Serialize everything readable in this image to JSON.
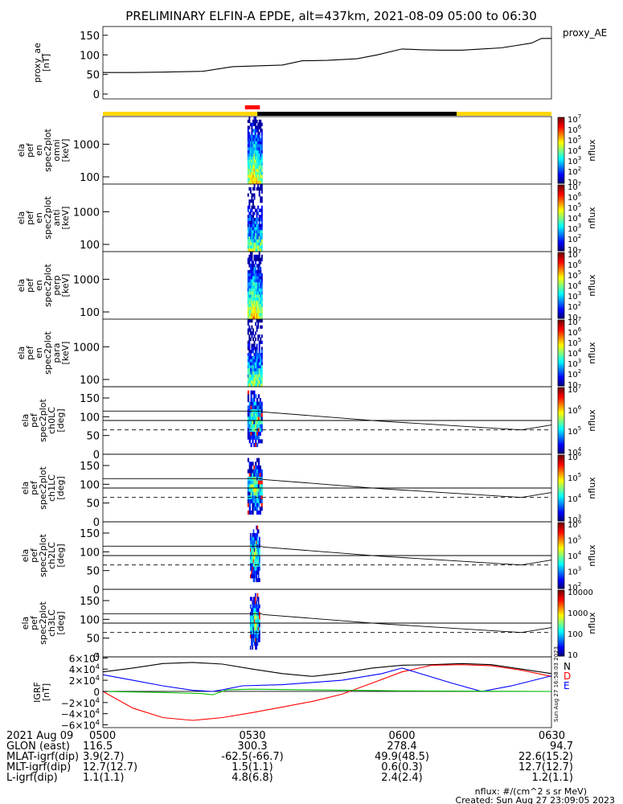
{
  "title": "PRELIMINARY ELFIN-A EPDE, alt=437km, 2021-08-09 05:00 to 06:30",
  "time_ticks": [
    "0500",
    "0530",
    "0600",
    "0630"
  ],
  "chart_data": [
    {
      "type": "line",
      "panel": "proxy_ae",
      "ylabel": [
        "proxy_ae",
        "[nT]"
      ],
      "legend": "proxy_AE",
      "ylim": [
        0,
        160
      ],
      "yticks": [
        0,
        50,
        100,
        150
      ],
      "x_minutes": [
        0,
        6,
        12,
        20,
        26,
        31,
        36,
        40,
        45,
        51,
        55,
        60,
        64,
        68,
        72,
        76,
        80,
        86,
        88,
        90
      ],
      "values": [
        55,
        55,
        56,
        58,
        70,
        72,
        74,
        85,
        86,
        90,
        100,
        115,
        113,
        112,
        112,
        115,
        118,
        130,
        142,
        142
      ],
      "line_color": "#000000"
    },
    {
      "type": "bar",
      "panel": "status_bar",
      "segments": [
        {
          "from": 0,
          "to": 31,
          "color": "#ffd700"
        },
        {
          "from": 31,
          "to": 71,
          "color": "#000000"
        },
        {
          "from": 71,
          "to": 90,
          "color": "#ffd700"
        }
      ],
      "marker": {
        "from": 28.5,
        "to": 31.5,
        "color": "#ff0000"
      }
    },
    {
      "type": "heatmap",
      "panel": "spec_omni",
      "ylabel": [
        "ela",
        "pef",
        "en",
        "spec2plot",
        "omni",
        "[keV]"
      ],
      "yscale": "log",
      "ylim": [
        60,
        7000
      ],
      "yticks": [
        100,
        1000
      ],
      "colorbar": {
        "label": "nflux",
        "ticks": [
          "10",
          "10^2",
          "10^3",
          "10^4",
          "10^5",
          "10^6",
          "10^7"
        ],
        "range": [
          1,
          7
        ]
      },
      "activity_minutes": [
        29,
        32
      ]
    },
    {
      "type": "heatmap",
      "panel": "spec_anti",
      "ylabel": [
        "ela",
        "pef",
        "en",
        "spec2plot",
        "anti",
        "[keV]"
      ],
      "yscale": "log",
      "ylim": [
        60,
        7000
      ],
      "yticks": [
        100,
        1000
      ],
      "colorbar": {
        "label": "nflux",
        "ticks": [
          "10",
          "10^2",
          "10^3",
          "10^4",
          "10^5",
          "10^6",
          "10^7"
        ],
        "range": [
          1,
          7
        ]
      },
      "activity_minutes": [
        29,
        32
      ]
    },
    {
      "type": "heatmap",
      "panel": "spec_perp",
      "ylabel": [
        "ela",
        "pef",
        "en",
        "spec2plot",
        "perp",
        "[keV]"
      ],
      "yscale": "log",
      "ylim": [
        60,
        7000
      ],
      "yticks": [
        100,
        1000
      ],
      "colorbar": {
        "label": "nflux",
        "ticks": [
          "10",
          "10^2",
          "10^3",
          "10^4",
          "10^5",
          "10^6",
          "10^7"
        ],
        "range": [
          1,
          7
        ]
      },
      "activity_minutes": [
        29,
        32
      ]
    },
    {
      "type": "heatmap",
      "panel": "spec_para",
      "ylabel": [
        "ela",
        "pef",
        "en",
        "spec2plot",
        "para",
        "[keV]"
      ],
      "yscale": "log",
      "ylim": [
        60,
        7000
      ],
      "yticks": [
        100,
        1000
      ],
      "colorbar": {
        "label": "nflux",
        "ticks": [
          "10",
          "10^2",
          "10^3",
          "10^4",
          "10^5",
          "10^6",
          "10^7"
        ],
        "range": [
          1,
          7
        ]
      },
      "activity_minutes": [
        29,
        32
      ]
    },
    {
      "type": "heatmap",
      "panel": "pa_ch0",
      "ylabel": [
        "ela",
        "pef",
        "spec2plot",
        "ch0LC",
        "[deg]"
      ],
      "ylim": [
        0,
        180
      ],
      "yticks": [
        0,
        50,
        100,
        150
      ],
      "colorbar": {
        "label": "nflux",
        "ticks": [
          "10^4",
          "10^5",
          "10^6",
          "10^7"
        ],
        "range": [
          3.6,
          7
        ]
      },
      "activity_minutes": [
        29,
        32
      ],
      "lines": {
        "solid_upper": 115,
        "solid_lower": 90,
        "dashed": 65,
        "curve": {
          "x_minutes": [
            32,
            56,
            84,
            90
          ],
          "values": [
            113,
            88,
            65,
            78
          ]
        }
      }
    },
    {
      "type": "heatmap",
      "panel": "pa_ch1",
      "ylabel": [
        "ela",
        "pef",
        "spec2plot",
        "ch1LC",
        "[deg]"
      ],
      "ylim": [
        0,
        180
      ],
      "yticks": [
        0,
        50,
        100,
        150
      ],
      "colorbar": {
        "label": "nflux",
        "ticks": [
          "10^3",
          "10^4",
          "10^5",
          "10^6"
        ],
        "range": [
          2.7,
          6.3
        ]
      },
      "activity_minutes": [
        29,
        32
      ],
      "lines": {
        "solid_upper": 115,
        "solid_lower": 90,
        "dashed": 65,
        "curve": {
          "x_minutes": [
            32,
            56,
            84,
            90
          ],
          "values": [
            113,
            88,
            65,
            78
          ]
        }
      }
    },
    {
      "type": "heatmap",
      "panel": "pa_ch2",
      "ylabel": [
        "ela",
        "pef",
        "spec2plot",
        "ch2LC",
        "[deg]"
      ],
      "ylim": [
        0,
        180
      ],
      "yticks": [
        0,
        50,
        100,
        150
      ],
      "colorbar": {
        "label": "nflux",
        "ticks": [
          "10^2",
          "10^3",
          "10^4",
          "10^5",
          "10^6"
        ],
        "range": [
          1.8,
          6.2
        ]
      },
      "activity_minutes": [
        29.5,
        31.5
      ],
      "lines": {
        "solid_upper": 115,
        "solid_lower": 90,
        "dashed": 65,
        "curve": {
          "x_minutes": [
            32,
            56,
            84,
            90
          ],
          "values": [
            113,
            88,
            65,
            78
          ]
        }
      }
    },
    {
      "type": "heatmap",
      "panel": "pa_ch3",
      "ylabel": [
        "ela",
        "pef",
        "spec2plot",
        "ch3LC",
        "[deg]"
      ],
      "ylim": [
        0,
        180
      ],
      "yticks": [
        0,
        50,
        100,
        150
      ],
      "colorbar": {
        "label": "nflux",
        "ticks": [
          "10",
          "100",
          "1000",
          "10000"
        ],
        "range": [
          1,
          4.4
        ]
      },
      "activity_minutes": [
        29.5,
        31.5
      ],
      "lines": {
        "solid_upper": 115,
        "solid_lower": 90,
        "dashed": 65,
        "curve": {
          "x_minutes": [
            32,
            56,
            84,
            90
          ],
          "values": [
            113,
            88,
            65,
            78
          ]
        }
      }
    },
    {
      "type": "line",
      "panel": "igrf",
      "ylabel": [
        "IGRF",
        "[nT]"
      ],
      "ylim": [
        -65000,
        62000
      ],
      "ytick_labels": [
        "6×10^4",
        "4×10^4",
        "2×10^4",
        "0",
        "−2×10^4",
        "−4×10^4",
        "−6×10^4"
      ],
      "ytick_values": [
        60000,
        40000,
        20000,
        0,
        -20000,
        -40000,
        -60000
      ],
      "series": [
        {
          "name": "N",
          "color": "#000000",
          "x_minutes": [
            0,
            6,
            12,
            18,
            24,
            30,
            36,
            42,
            48,
            54,
            60,
            66,
            72,
            78,
            84,
            90
          ],
          "values": [
            35000,
            42000,
            50000,
            52000,
            49000,
            40000,
            32000,
            27000,
            33000,
            42000,
            47000,
            48000,
            50000,
            48000,
            40000,
            32000
          ]
        },
        {
          "name": "D",
          "color": "#ff0000",
          "x_minutes": [
            0,
            6,
            12,
            18,
            24,
            30,
            36,
            42,
            48,
            54,
            60,
            66,
            72,
            78,
            84,
            90
          ],
          "values": [
            0,
            -30000,
            -47000,
            -52000,
            -47000,
            -38000,
            -28000,
            -18000,
            -5000,
            15000,
            35000,
            47000,
            48000,
            46000,
            38000,
            27000
          ]
        },
        {
          "name": "E",
          "color": "#0000ff",
          "x_minutes": [
            0,
            6,
            12,
            18,
            22,
            24,
            28,
            36,
            48,
            56,
            60,
            70,
            76,
            82,
            90
          ],
          "values": [
            30000,
            20000,
            10000,
            2000,
            0,
            3000,
            10000,
            12000,
            20000,
            32000,
            42000,
            15000,
            0,
            10000,
            28000
          ]
        },
        {
          "name": "",
          "color": "#00c000",
          "x_minutes": [
            0,
            6,
            12,
            16,
            20,
            22,
            25,
            30,
            40,
            50,
            60,
            70,
            80,
            90
          ],
          "values": [
            0,
            -1000,
            -2000,
            -3000,
            -4000,
            -6000,
            3000,
            4000,
            3000,
            2000,
            1000,
            500,
            200,
            0
          ]
        }
      ],
      "legend_labels": [
        "N",
        "D",
        "E"
      ],
      "side_note": "Sun Aug 27 16:58:03 2023"
    }
  ],
  "ephemeris": {
    "header_date": "2021 Aug 09",
    "rows": [
      {
        "label": "GLON (east)",
        "values": [
          "116.5",
          "300.3",
          "278.4",
          "94.7"
        ]
      },
      {
        "label": "MLAT-igrf(dip)",
        "values": [
          "3.9(2.7)",
          "-62.5(-66.7)",
          "49.9(48.5)",
          "22.6(15.2)"
        ]
      },
      {
        "label": "MLT-igrf(dip)",
        "values": [
          "12.7(12.7)",
          "1.5(1.1)",
          "0.6(0.3)",
          "12.7(12.7)"
        ]
      },
      {
        "label": "L-igrf(dip)",
        "values": [
          "1.1(1.1)",
          "4.8(6.8)",
          "2.4(2.4)",
          "1.2(1.1)"
        ]
      }
    ]
  },
  "footer": {
    "units": "nflux: #/(cm^2 s sr MeV)",
    "created": "Created: Sun Aug 27 23:09:05 2023"
  }
}
